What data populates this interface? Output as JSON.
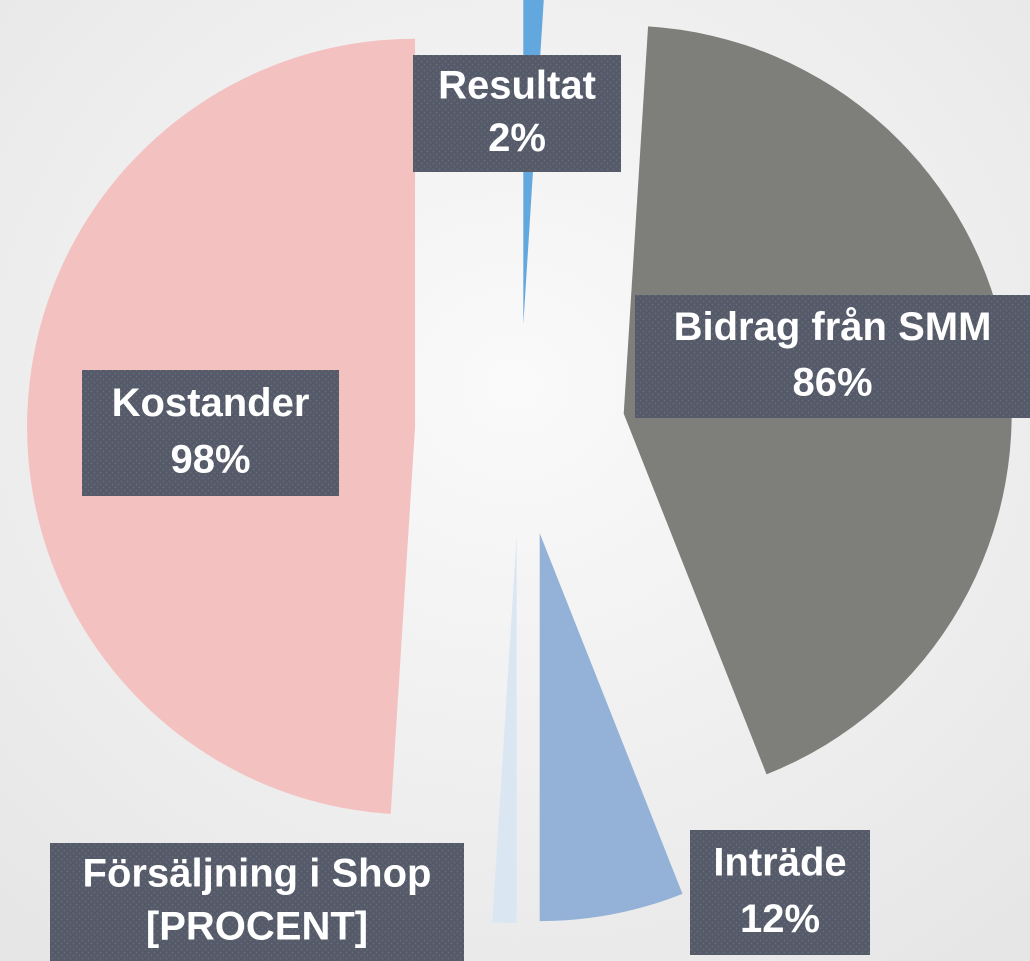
{
  "chart_data": {
    "type": "pie",
    "categories": [
      "Resultat",
      "Bidrag från SMM",
      "Inträde",
      "Försäljning i Shop",
      "Kostander"
    ],
    "values": [
      2,
      86,
      12,
      2,
      98
    ],
    "value_labels": [
      "2%",
      "86%",
      "12%",
      "[PROCENT]",
      "98%"
    ],
    "colors": [
      "#62a8de",
      "#7e7f7b",
      "#94b2d7",
      "#dbe6f3",
      "#f4c1c1"
    ],
    "start_angle": 0,
    "explode": true
  }
}
